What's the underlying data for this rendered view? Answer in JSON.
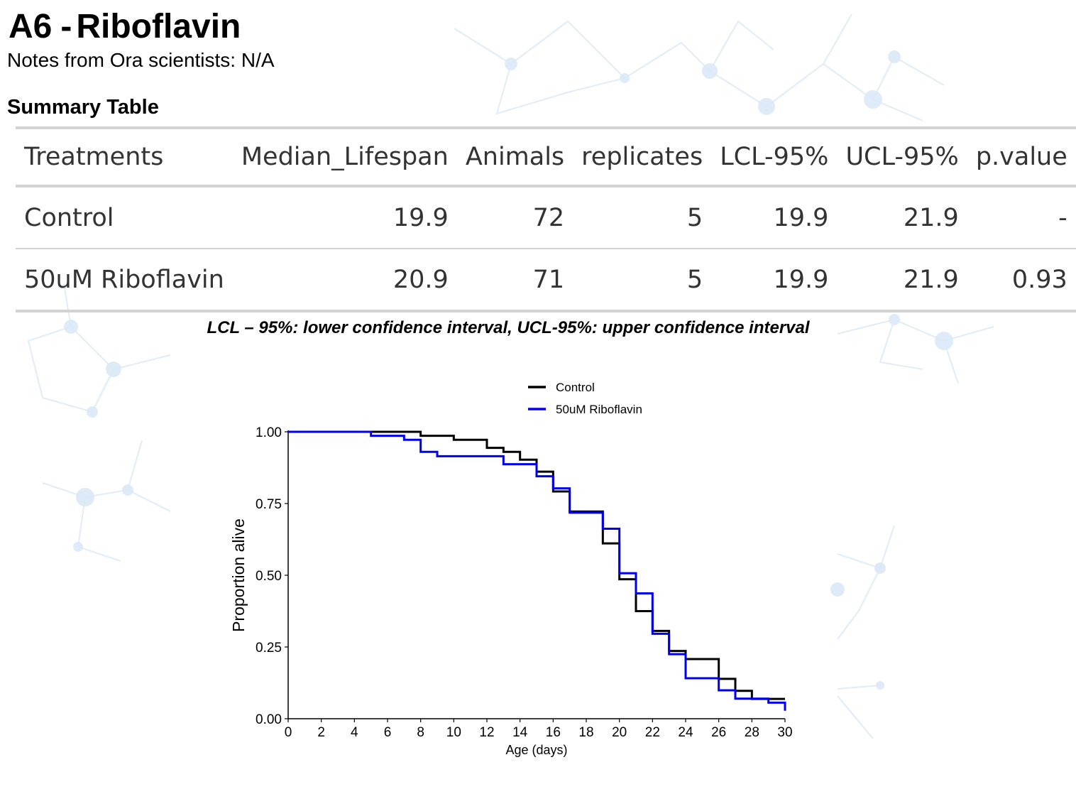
{
  "header": {
    "code": "A6",
    "separator": "-",
    "compound": "Riboflavin",
    "notes": "Notes from Ora scientists: N/A"
  },
  "summary": {
    "heading": "Summary Table",
    "columns": [
      "Treatments",
      "Median_Lifespan",
      "Animals",
      "replicates",
      "LCL-95%",
      "UCL-95%",
      "p.value"
    ],
    "rows": [
      [
        "Control",
        "19.9",
        "72",
        "5",
        "19.9",
        "21.9",
        "-"
      ],
      [
        "50uM Riboflavin",
        "20.9",
        "71",
        "5",
        "19.9",
        "21.9",
        "0.93"
      ]
    ],
    "footnote": "LCL – 95%: lower confidence interval, UCL-95%: upper confidence interval"
  },
  "chart_data": {
    "type": "line",
    "step": true,
    "xlabel": "Age (days)",
    "ylabel": "Proportion alive",
    "xlim": [
      0,
      30
    ],
    "ylim": [
      0,
      1
    ],
    "xticks": [
      0,
      2,
      4,
      6,
      8,
      10,
      12,
      14,
      16,
      18,
      20,
      22,
      24,
      26,
      28,
      30
    ],
    "yticks": [
      0,
      0.25,
      0.5,
      0.75,
      1.0
    ],
    "ytick_labels": [
      "0.00",
      "0.25",
      "0.50",
      "0.75",
      "1.00"
    ],
    "grid": false,
    "legend_position": "top",
    "series": [
      {
        "name": "Control",
        "color": "#000000",
        "x": [
          0,
          8,
          10,
          12,
          13,
          14,
          15,
          16,
          17,
          19,
          20,
          21,
          22,
          23,
          24,
          26,
          27,
          28,
          30
        ],
        "y": [
          1.0,
          0.986,
          0.972,
          0.944,
          0.93,
          0.903,
          0.861,
          0.792,
          0.722,
          0.611,
          0.486,
          0.375,
          0.306,
          0.236,
          0.208,
          0.139,
          0.097,
          0.069,
          0.069
        ]
      },
      {
        "name": "50uM Riboflavin",
        "color": "#0000ee",
        "x": [
          0,
          5,
          7,
          8,
          9,
          13,
          15,
          16,
          17,
          19,
          20,
          21,
          22,
          23,
          24,
          26,
          27,
          29,
          30
        ],
        "y": [
          1.0,
          0.986,
          0.972,
          0.93,
          0.915,
          0.887,
          0.845,
          0.803,
          0.718,
          0.662,
          0.507,
          0.437,
          0.296,
          0.225,
          0.141,
          0.099,
          0.07,
          0.056,
          0.028
        ]
      }
    ]
  }
}
